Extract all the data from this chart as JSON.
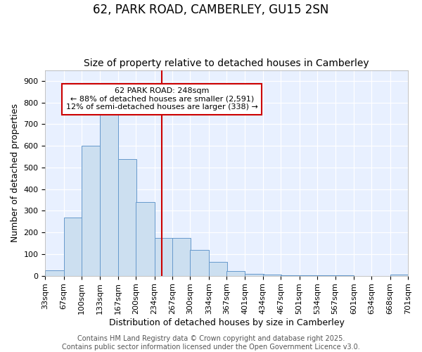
{
  "title": "62, PARK ROAD, CAMBERLEY, GU15 2SN",
  "subtitle": "Size of property relative to detached houses in Camberley",
  "xlabel": "Distribution of detached houses by size in Camberley",
  "ylabel": "Number of detached properties",
  "bin_edges": [
    33,
    67,
    100,
    133,
    167,
    200,
    234,
    267,
    300,
    334,
    367,
    401,
    434,
    467,
    501,
    534,
    567,
    601,
    634,
    668,
    701
  ],
  "bar_heights": [
    25,
    270,
    600,
    745,
    540,
    340,
    175,
    175,
    120,
    65,
    22,
    10,
    5,
    3,
    2,
    1,
    1,
    0,
    0,
    5
  ],
  "bar_color": "#ccdff0",
  "bar_edgecolor": "#6699cc",
  "vline_x": 248,
  "vline_color": "#cc0000",
  "ylim": [
    0,
    950
  ],
  "yticks": [
    0,
    100,
    200,
    300,
    400,
    500,
    600,
    700,
    800,
    900
  ],
  "annotation_title": "62 PARK ROAD: 248sqm",
  "annotation_line1": "← 88% of detached houses are smaller (2,591)",
  "annotation_line2": "12% of semi-detached houses are larger (338) →",
  "annotation_box_facecolor": "#ffffff",
  "annotation_box_edgecolor": "#cc0000",
  "footer_line1": "Contains HM Land Registry data © Crown copyright and database right 2025.",
  "footer_line2": "Contains public sector information licensed under the Open Government Licence v3.0.",
  "fig_bg_color": "#ffffff",
  "plot_bg_color": "#e8f0ff",
  "title_fontsize": 12,
  "subtitle_fontsize": 10,
  "axis_label_fontsize": 9,
  "tick_fontsize": 8,
  "annot_fontsize": 8,
  "footer_fontsize": 7
}
